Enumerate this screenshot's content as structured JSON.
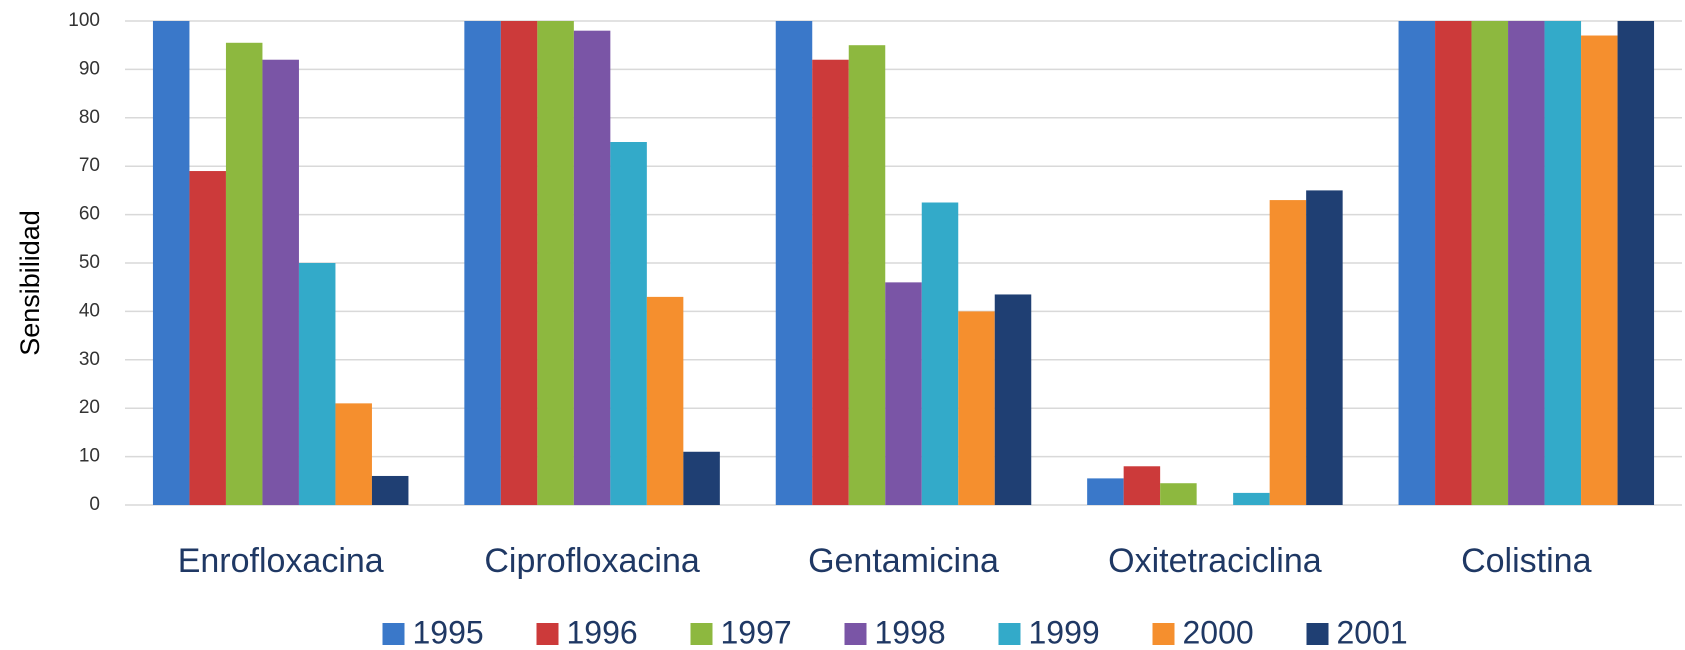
{
  "chart_data": {
    "type": "bar",
    "y_label": "Sensibilidad",
    "categories": [
      "Enrofloxacina",
      "Ciprofloxacina",
      "Gentamicina",
      "Oxitetraciclina",
      "Colistina"
    ],
    "series": [
      {
        "name": "1995",
        "color": "#3a78c9",
        "values": [
          100,
          100,
          100,
          5.5,
          100
        ]
      },
      {
        "name": "1996",
        "color": "#cc3a3a",
        "values": [
          69,
          100,
          92,
          8,
          100
        ]
      },
      {
        "name": "1997",
        "color": "#8db83f",
        "values": [
          95.5,
          100,
          95,
          4.5,
          100
        ]
      },
      {
        "name": "1998",
        "color": "#7a55a6",
        "values": [
          92,
          98,
          46,
          0,
          100
        ]
      },
      {
        "name": "1999",
        "color": "#33aac9",
        "values": [
          50,
          75,
          62.5,
          2.5,
          100
        ]
      },
      {
        "name": "2000",
        "color": "#f58f2e",
        "values": [
          21,
          43,
          40,
          63,
          97
        ]
      },
      {
        "name": "2001",
        "color": "#1f3f73",
        "values": [
          6,
          11,
          43.5,
          65,
          100
        ]
      }
    ],
    "ylim": [
      0,
      100
    ],
    "yticks": [
      0,
      10,
      20,
      30,
      40,
      50,
      60,
      70,
      80,
      90,
      100
    ],
    "grid": true,
    "legend": "bottom"
  }
}
